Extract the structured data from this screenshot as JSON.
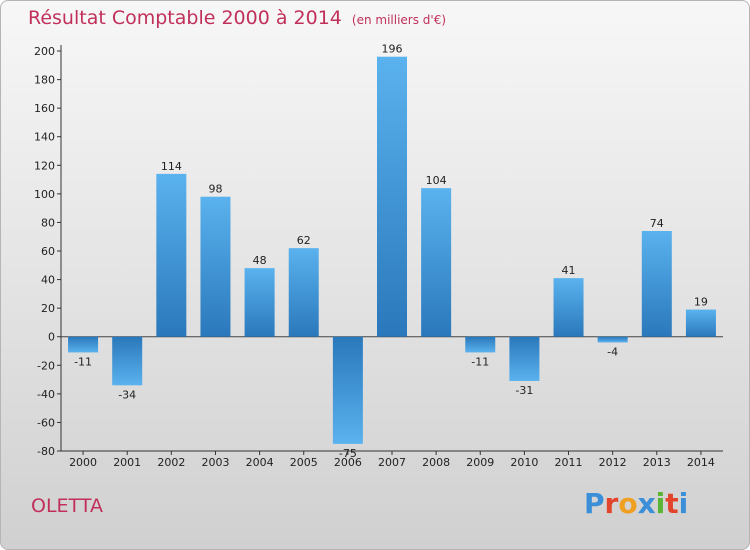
{
  "title": "Résultat Comptable 2000 à 2014",
  "unit": "(en milliers d'€)",
  "place": "OLETTA",
  "logo": {
    "letters": [
      "P",
      "r",
      "o",
      "x",
      "i",
      "t",
      "i"
    ],
    "colors": [
      "#3a8fd8",
      "#e3452c",
      "#f0a020",
      "#3a8fd8",
      "#5ab534",
      "#e3452c",
      "#3a8fd8"
    ]
  },
  "colors": {
    "bar_top": "#5ab2ee",
    "bar_bottom": "#2a78bb",
    "title": "#c1305a"
  },
  "chart_data": {
    "type": "bar",
    "title": "Résultat Comptable 2000 à 2014",
    "unit": "(en milliers d'€)",
    "categories": [
      "2000",
      "2001",
      "2002",
      "2003",
      "2004",
      "2005",
      "2006",
      "2007",
      "2008",
      "2009",
      "2010",
      "2011",
      "2012",
      "2013",
      "2014"
    ],
    "values": [
      -11,
      -34,
      114,
      98,
      48,
      62,
      -75,
      196,
      104,
      -11,
      -31,
      41,
      -4,
      74,
      19
    ],
    "ylim": [
      -80,
      200
    ],
    "yticks": [
      -80,
      -60,
      -40,
      -20,
      0,
      20,
      40,
      60,
      80,
      100,
      120,
      140,
      160,
      180,
      200
    ],
    "grid": false,
    "legend": "none"
  }
}
